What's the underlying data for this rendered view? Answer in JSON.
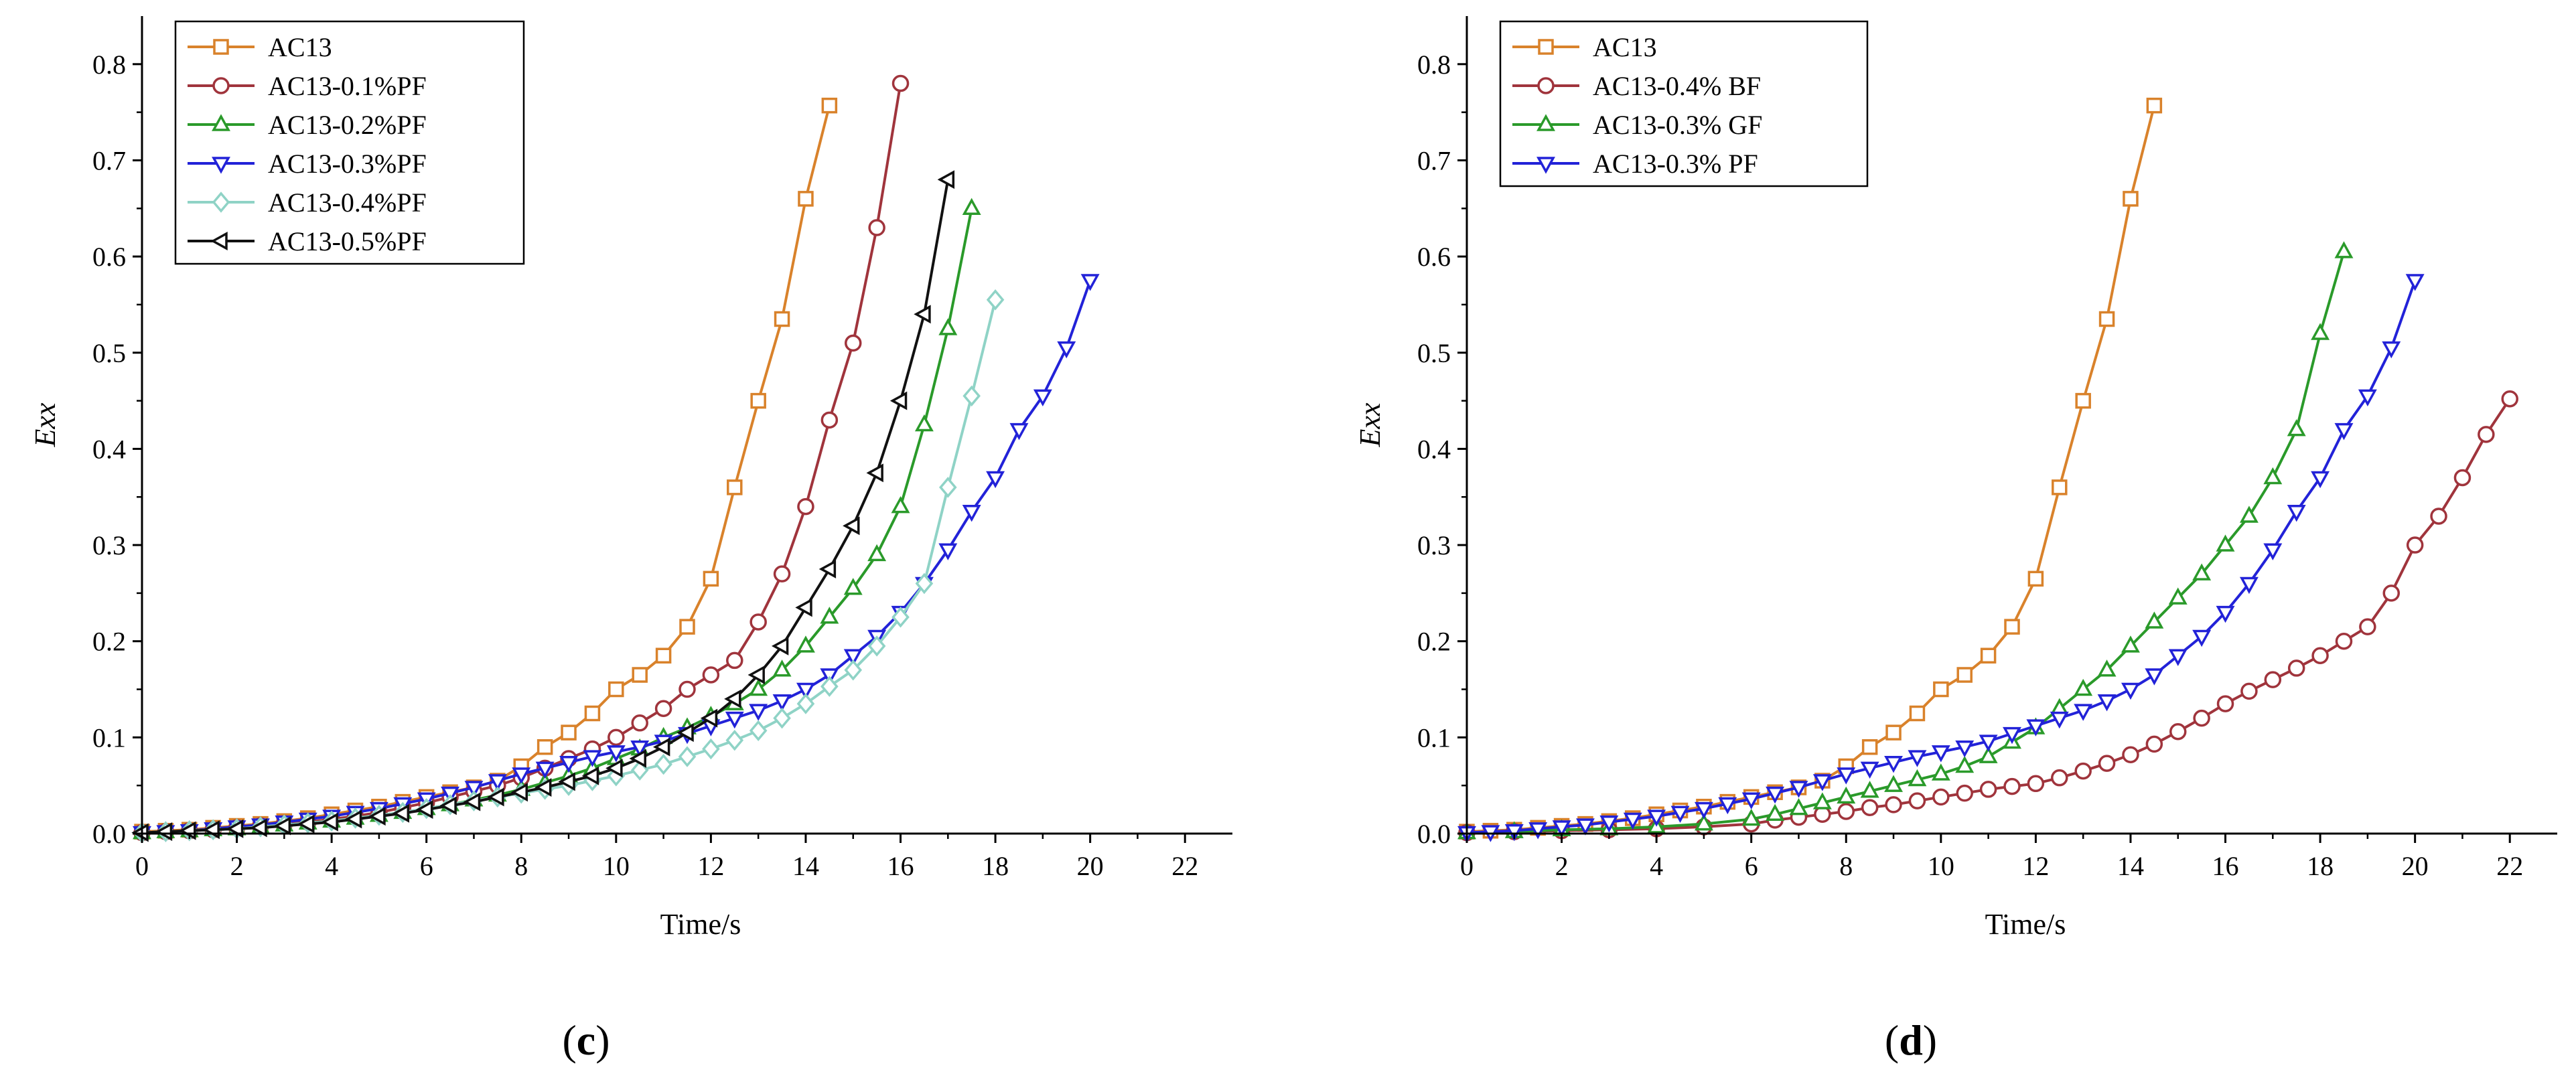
{
  "chart_data": [
    {
      "type": "line",
      "panel_label": {
        "open": "(",
        "letter": "c",
        "close": ")"
      },
      "xlabel": "Time/s",
      "ylabel": "Exx",
      "xlim": [
        0,
        23
      ],
      "ylim": [
        0,
        0.85
      ],
      "xticks": [
        0,
        2,
        4,
        6,
        8,
        10,
        12,
        14,
        16,
        18,
        20,
        22
      ],
      "yticks": [
        "0.0",
        "0.1",
        "0.2",
        "0.3",
        "0.4",
        "0.5",
        "0.6",
        "0.7",
        "0.8"
      ],
      "legend_position": "top-left",
      "series": [
        {
          "name": "AC13",
          "color": "#D9822B",
          "marker": "square",
          "x": [
            0,
            0.5,
            1,
            1.5,
            2,
            2.5,
            3,
            3.5,
            4,
            4.5,
            5,
            5.5,
            6,
            6.5,
            7,
            7.5,
            8,
            8.5,
            9,
            9.5,
            10,
            10.5,
            11,
            11.5,
            12,
            12.5,
            13,
            13.5,
            14,
            14.5
          ],
          "y": [
            0.002,
            0.003,
            0.004,
            0.006,
            0.008,
            0.01,
            0.013,
            0.016,
            0.02,
            0.024,
            0.028,
            0.033,
            0.038,
            0.043,
            0.048,
            0.055,
            0.07,
            0.09,
            0.105,
            0.125,
            0.15,
            0.165,
            0.185,
            0.215,
            0.265,
            0.36,
            0.45,
            0.535,
            0.66,
            0.757
          ]
        },
        {
          "name": "AC13-0.1%PF",
          "color": "#A0343C",
          "marker": "circle",
          "x": [
            0,
            0.5,
            1,
            1.5,
            2,
            2.5,
            3,
            3.5,
            4,
            4.5,
            5,
            5.5,
            6,
            6.5,
            7,
            7.5,
            8,
            8.5,
            9,
            9.5,
            10,
            10.5,
            11,
            11.5,
            12,
            12.5,
            13,
            13.5,
            14,
            14.5,
            15,
            15.5,
            16
          ],
          "y": [
            0.001,
            0.002,
            0.003,
            0.004,
            0.006,
            0.008,
            0.01,
            0.012,
            0.015,
            0.018,
            0.022,
            0.027,
            0.032,
            0.038,
            0.044,
            0.05,
            0.058,
            0.068,
            0.078,
            0.088,
            0.1,
            0.115,
            0.13,
            0.15,
            0.165,
            0.18,
            0.22,
            0.27,
            0.34,
            0.43,
            0.51,
            0.63,
            0.78
          ]
        },
        {
          "name": "AC13-0.2%PF",
          "color": "#2A9A2A",
          "marker": "triangle-up",
          "x": [
            0,
            0.5,
            1,
            1.5,
            2,
            2.5,
            3,
            3.5,
            4,
            4.5,
            5,
            5.5,
            6,
            6.5,
            7,
            7.5,
            8,
            8.5,
            9,
            9.5,
            10,
            10.5,
            11,
            11.5,
            12,
            12.5,
            13,
            13.5,
            14,
            14.5,
            15,
            15.5,
            16,
            16.5,
            17,
            17.5
          ],
          "y": [
            0.001,
            0.002,
            0.003,
            0.004,
            0.005,
            0.007,
            0.009,
            0.011,
            0.013,
            0.016,
            0.019,
            0.022,
            0.026,
            0.03,
            0.035,
            0.04,
            0.046,
            0.053,
            0.06,
            0.068,
            0.078,
            0.088,
            0.1,
            0.11,
            0.122,
            0.135,
            0.15,
            0.17,
            0.195,
            0.225,
            0.255,
            0.29,
            0.34,
            0.425,
            0.525,
            0.65
          ]
        },
        {
          "name": "AC13-0.3%PF",
          "color": "#2222D8",
          "marker": "triangle-down",
          "x": [
            0,
            0.5,
            1,
            1.5,
            2,
            2.5,
            3,
            3.5,
            4,
            4.5,
            5,
            5.5,
            6,
            6.5,
            7,
            7.5,
            8,
            8.5,
            9,
            9.5,
            10,
            10.5,
            11,
            11.5,
            12,
            12.5,
            13,
            13.5,
            14,
            14.5,
            15,
            15.5,
            16,
            16.5,
            17,
            17.5,
            18,
            18.5,
            19,
            19.5,
            20
          ],
          "y": [
            0.001,
            0.002,
            0.003,
            0.005,
            0.007,
            0.009,
            0.012,
            0.015,
            0.018,
            0.022,
            0.026,
            0.031,
            0.036,
            0.042,
            0.048,
            0.055,
            0.062,
            0.068,
            0.074,
            0.08,
            0.085,
            0.09,
            0.096,
            0.104,
            0.112,
            0.12,
            0.128,
            0.138,
            0.15,
            0.165,
            0.185,
            0.205,
            0.23,
            0.26,
            0.295,
            0.335,
            0.37,
            0.42,
            0.455,
            0.505,
            0.575
          ]
        },
        {
          "name": "AC13-0.4%PF",
          "color": "#8FD3C6",
          "marker": "diamond",
          "x": [
            0,
            0.5,
            1,
            1.5,
            2,
            2.5,
            3,
            3.5,
            4,
            4.5,
            5,
            5.5,
            6,
            6.5,
            7,
            7.5,
            8,
            8.5,
            9,
            9.5,
            10,
            10.5,
            11,
            11.5,
            12,
            12.5,
            13,
            13.5,
            14,
            14.5,
            15,
            15.5,
            16,
            16.5,
            17,
            17.5,
            18
          ],
          "y": [
            0.001,
            0.002,
            0.003,
            0.004,
            0.005,
            0.007,
            0.009,
            0.011,
            0.013,
            0.016,
            0.019,
            0.022,
            0.026,
            0.03,
            0.034,
            0.038,
            0.042,
            0.046,
            0.05,
            0.055,
            0.06,
            0.066,
            0.072,
            0.08,
            0.088,
            0.097,
            0.107,
            0.12,
            0.135,
            0.153,
            0.17,
            0.195,
            0.225,
            0.26,
            0.36,
            0.455,
            0.555
          ]
        },
        {
          "name": "AC13-0.5%PF",
          "color": "#111111",
          "marker": "triangle-left",
          "x": [
            0,
            0.5,
            1,
            1.5,
            2,
            2.5,
            3,
            3.5,
            4,
            4.5,
            5,
            5.5,
            6,
            6.5,
            7,
            7.5,
            8,
            8.5,
            9,
            9.5,
            10,
            10.5,
            11,
            11.5,
            12,
            12.5,
            13,
            13.5,
            14,
            14.5,
            15,
            15.5,
            16,
            16.5,
            17
          ],
          "y": [
            0.001,
            0.002,
            0.003,
            0.004,
            0.005,
            0.006,
            0.008,
            0.01,
            0.012,
            0.015,
            0.018,
            0.021,
            0.025,
            0.029,
            0.033,
            0.038,
            0.043,
            0.048,
            0.054,
            0.06,
            0.068,
            0.078,
            0.09,
            0.105,
            0.12,
            0.14,
            0.165,
            0.195,
            0.235,
            0.275,
            0.32,
            0.375,
            0.45,
            0.54,
            0.68
          ]
        }
      ]
    },
    {
      "type": "line",
      "panel_label": {
        "open": "(",
        "letter": "d",
        "close": ")"
      },
      "xlabel": "Time/s",
      "ylabel": "Exx",
      "xlim": [
        0,
        23
      ],
      "ylim": [
        0,
        0.85
      ],
      "xticks": [
        0,
        2,
        4,
        6,
        8,
        10,
        12,
        14,
        16,
        18,
        20,
        22
      ],
      "yticks": [
        "0.0",
        "0.1",
        "0.2",
        "0.3",
        "0.4",
        "0.5",
        "0.6",
        "0.7",
        "0.8"
      ],
      "legend_position": "top-left",
      "series": [
        {
          "name": "AC13",
          "color": "#D9822B",
          "marker": "square",
          "x": [
            0,
            0.5,
            1,
            1.5,
            2,
            2.5,
            3,
            3.5,
            4,
            4.5,
            5,
            5.5,
            6,
            6.5,
            7,
            7.5,
            8,
            8.5,
            9,
            9.5,
            10,
            10.5,
            11,
            11.5,
            12,
            12.5,
            13,
            13.5,
            14,
            14.5
          ],
          "y": [
            0.002,
            0.003,
            0.004,
            0.006,
            0.008,
            0.01,
            0.013,
            0.016,
            0.02,
            0.024,
            0.028,
            0.033,
            0.038,
            0.043,
            0.048,
            0.055,
            0.07,
            0.09,
            0.105,
            0.125,
            0.15,
            0.165,
            0.185,
            0.215,
            0.265,
            0.36,
            0.45,
            0.535,
            0.66,
            0.757
          ]
        },
        {
          "name": "AC13-0.4% BF",
          "color": "#A0343C",
          "marker": "circle",
          "x": [
            0,
            1,
            2,
            3,
            4,
            5,
            6,
            6.5,
            7,
            7.5,
            8,
            8.5,
            9,
            9.5,
            10,
            10.5,
            11,
            11.5,
            12,
            12.5,
            13,
            13.5,
            14,
            14.5,
            15,
            15.5,
            16,
            16.5,
            17,
            17.5,
            18,
            18.5,
            19,
            19.5,
            20,
            20.5,
            21,
            21.5,
            22
          ],
          "y": [
            0.001,
            0.002,
            0.003,
            0.004,
            0.005,
            0.007,
            0.01,
            0.014,
            0.017,
            0.02,
            0.023,
            0.027,
            0.03,
            0.034,
            0.038,
            0.042,
            0.046,
            0.049,
            0.052,
            0.058,
            0.065,
            0.073,
            0.082,
            0.093,
            0.106,
            0.12,
            0.135,
            0.148,
            0.16,
            0.172,
            0.185,
            0.2,
            0.215,
            0.25,
            0.3,
            0.33,
            0.37,
            0.415,
            0.452
          ]
        },
        {
          "name": "AC13-0.3% GF",
          "color": "#2A9A2A",
          "marker": "triangle-up",
          "x": [
            0,
            1,
            2,
            3,
            4,
            5,
            6,
            6.5,
            7,
            7.5,
            8,
            8.5,
            9,
            9.5,
            10,
            10.5,
            11,
            11.5,
            12,
            12.5,
            13,
            13.5,
            14,
            14.5,
            15,
            15.5,
            16,
            16.5,
            17,
            17.5,
            18,
            18.5
          ],
          "y": [
            0.001,
            0.002,
            0.004,
            0.005,
            0.007,
            0.01,
            0.015,
            0.02,
            0.026,
            0.032,
            0.038,
            0.044,
            0.05,
            0.056,
            0.062,
            0.07,
            0.08,
            0.095,
            0.11,
            0.13,
            0.15,
            0.17,
            0.195,
            0.22,
            0.245,
            0.27,
            0.3,
            0.33,
            0.37,
            0.42,
            0.52,
            0.605
          ]
        },
        {
          "name": "AC13-0.3% PF",
          "color": "#2222D8",
          "marker": "triangle-down",
          "x": [
            0,
            0.5,
            1,
            1.5,
            2,
            2.5,
            3,
            3.5,
            4,
            4.5,
            5,
            5.5,
            6,
            6.5,
            7,
            7.5,
            8,
            8.5,
            9,
            9.5,
            10,
            10.5,
            11,
            11.5,
            12,
            12.5,
            13,
            13.5,
            14,
            14.5,
            15,
            15.5,
            16,
            16.5,
            17,
            17.5,
            18,
            18.5,
            19,
            19.5,
            20
          ],
          "y": [
            0.001,
            0.002,
            0.003,
            0.005,
            0.007,
            0.009,
            0.012,
            0.015,
            0.018,
            0.022,
            0.026,
            0.031,
            0.036,
            0.042,
            0.048,
            0.055,
            0.062,
            0.068,
            0.074,
            0.08,
            0.085,
            0.09,
            0.096,
            0.104,
            0.112,
            0.12,
            0.128,
            0.138,
            0.15,
            0.165,
            0.185,
            0.205,
            0.23,
            0.26,
            0.295,
            0.335,
            0.37,
            0.42,
            0.455,
            0.505,
            0.575
          ]
        }
      ]
    }
  ]
}
